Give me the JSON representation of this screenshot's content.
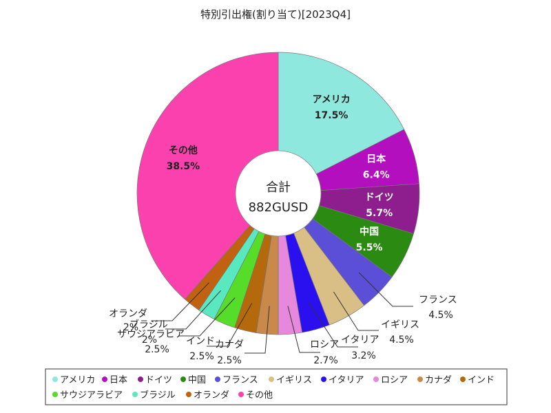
{
  "chart_data": {
    "type": "pie",
    "title": "特別引出権(割り当て)[2023Q4]",
    "center_label": "合計",
    "center_value": "882GUSD",
    "legend_position": "bottom",
    "slices": [
      {
        "name": "アメリカ",
        "label": "アメリカ",
        "value": 17.5,
        "value_label": "17.5%",
        "color": "#8ee8de"
      },
      {
        "name": "日本",
        "label": "日本",
        "value": 6.4,
        "value_label": "6.4%",
        "color": "#b40fbf"
      },
      {
        "name": "ドイツ",
        "label": "ドイツ",
        "value": 5.7,
        "value_label": "5.7%",
        "color": "#8e1d8e"
      },
      {
        "name": "中国",
        "label": "中国",
        "value": 5.5,
        "value_label": "5.5%",
        "color": "#2b8a12"
      },
      {
        "name": "フランス",
        "label": "フランス",
        "value": 4.5,
        "value_label": "4.5%",
        "color": "#5a4fd6"
      },
      {
        "name": "イギリス",
        "label": "イギリス",
        "value": 4.5,
        "value_label": "4.5%",
        "color": "#d9bf86"
      },
      {
        "name": "イタリア",
        "label": "イタリア",
        "value": 3.2,
        "value_label": "3.2%",
        "color": "#2a10ee"
      },
      {
        "name": "ロシア",
        "label": "ロシア",
        "value": 2.7,
        "value_label": "2.7%",
        "color": "#e689dc"
      },
      {
        "name": "カナダ",
        "label": "カナダ",
        "value": 2.5,
        "value_label": "2.5%",
        "color": "#c8894a"
      },
      {
        "name": "インド",
        "label": "インド",
        "value": 2.5,
        "value_label": "2.5%",
        "color": "#b3690c"
      },
      {
        "name": "サウジアラビア",
        "label": "サウジアラビア",
        "value": 2.5,
        "value_label": "2.5%",
        "color": "#55dd2a"
      },
      {
        "name": "ブラジル",
        "label": "ブラジル",
        "value": 2.0,
        "value_label": "2%",
        "color": "#5ae8c0"
      },
      {
        "name": "オランダ",
        "label": "オランダ",
        "value": 2.0,
        "value_label": "2%",
        "color": "#c06210"
      },
      {
        "name": "その他",
        "label": "その他",
        "value": 38.5,
        "value_label": "38.5%",
        "color": "#fa41ad"
      }
    ]
  }
}
